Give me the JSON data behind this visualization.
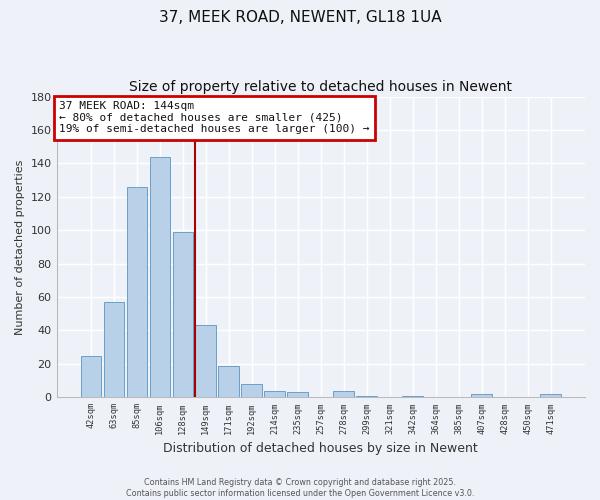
{
  "title": "37, MEEK ROAD, NEWENT, GL18 1UA",
  "subtitle": "Size of property relative to detached houses in Newent",
  "xlabel": "Distribution of detached houses by size in Newent",
  "ylabel": "Number of detached properties",
  "bar_labels": [
    "42sqm",
    "63sqm",
    "85sqm",
    "106sqm",
    "128sqm",
    "149sqm",
    "171sqm",
    "192sqm",
    "214sqm",
    "235sqm",
    "257sqm",
    "278sqm",
    "299sqm",
    "321sqm",
    "342sqm",
    "364sqm",
    "385sqm",
    "407sqm",
    "428sqm",
    "450sqm",
    "471sqm"
  ],
  "bar_values": [
    25,
    57,
    126,
    144,
    99,
    43,
    19,
    8,
    4,
    3,
    0,
    4,
    1,
    0,
    1,
    0,
    0,
    2,
    0,
    0,
    2
  ],
  "bar_color": "#b8d0e8",
  "bar_edge_color": "#6aa0c8",
  "vline_color": "#aa0000",
  "vline_x": 4.55,
  "annotation_title": "37 MEEK ROAD: 144sqm",
  "annotation_line1": "← 80% of detached houses are smaller (425)",
  "annotation_line2": "19% of semi-detached houses are larger (100) →",
  "annotation_box_color": "#ffffff",
  "annotation_box_edge": "#cc0000",
  "ylim": [
    0,
    180
  ],
  "yticks": [
    0,
    20,
    40,
    60,
    80,
    100,
    120,
    140,
    160,
    180
  ],
  "footnote1": "Contains HM Land Registry data © Crown copyright and database right 2025.",
  "footnote2": "Contains public sector information licensed under the Open Government Licence v3.0.",
  "bg_color": "#eef2f8",
  "grid_color": "#ffffff",
  "title_fontsize": 11,
  "subtitle_fontsize": 10
}
